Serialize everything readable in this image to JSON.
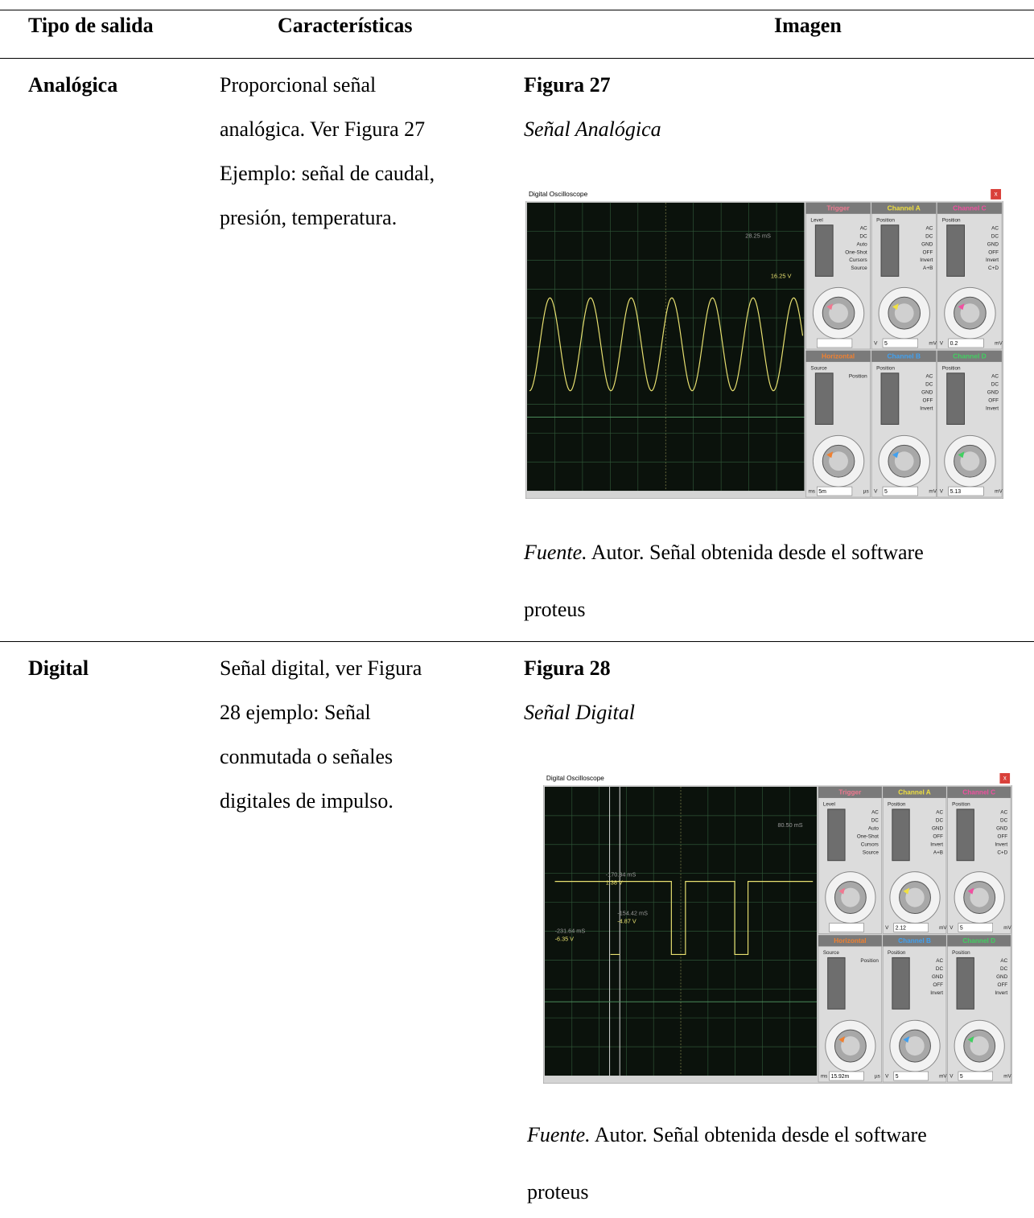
{
  "table": {
    "headers": [
      "Tipo de salida",
      "Características",
      "Imagen"
    ],
    "rows": [
      {
        "type": "Analógica",
        "features": [
          "Proporcional señal",
          "analógica. Ver Figura 27",
          "Ejemplo: señal de caudal,",
          "presión, temperatura."
        ],
        "figure": {
          "number": "Figura 27",
          "title": "Señal Analógica",
          "source_label": "Fuente.",
          "source_text": [
            "Autor. Señal obtenida desde el software",
            "proteus"
          ],
          "scope": {
            "window_title": "Digital Oscilloscope",
            "close": "x",
            "wave": "sine",
            "readouts": [
              {
                "text": "28.25 mS",
                "color": "#9a9a9a"
              },
              {
                "text": "16.25 V",
                "color": "#e8e070"
              }
            ],
            "panels": [
              {
                "name": "Trigger",
                "color": "#f07890",
                "labels": [
                  "Level",
                  "AC",
                  "DC",
                  "Auto",
                  "One-Shot",
                  "Cursors",
                  "Source"
                ],
                "field": "",
                "units": []
              },
              {
                "name": "Channel A",
                "color": "#f0e040",
                "labels": [
                  "Position",
                  "AC",
                  "DC",
                  "GND",
                  "OFF",
                  "Invert",
                  "A+B"
                ],
                "field": "5",
                "units": [
                  "V",
                  "mV"
                ]
              },
              {
                "name": "Channel C",
                "color": "#f050a0",
                "labels": [
                  "Position",
                  "AC",
                  "DC",
                  "GND",
                  "OFF",
                  "Invert",
                  "C+D"
                ],
                "field": "0.2",
                "units": [
                  "V",
                  "mV"
                ]
              },
              {
                "name": "Horizontal",
                "color": "#f08030",
                "labels": [
                  "Source",
                  "Position"
                ],
                "field": "5m",
                "units": [
                  "ms",
                  "µs"
                ]
              },
              {
                "name": "Channel B",
                "color": "#40a0f0",
                "labels": [
                  "Position",
                  "AC",
                  "DC",
                  "GND",
                  "OFF",
                  "Invert"
                ],
                "field": "5",
                "units": [
                  "V",
                  "mV"
                ]
              },
              {
                "name": "Channel D",
                "color": "#40d060",
                "labels": [
                  "Position",
                  "AC",
                  "DC",
                  "GND",
                  "OFF",
                  "Invert"
                ],
                "field": "5.13",
                "units": [
                  "V",
                  "mV"
                ]
              }
            ]
          }
        }
      },
      {
        "type": "Digital",
        "features": [
          "Señal digital, ver Figura",
          "28 ejemplo: Señal",
          "conmutada o señales",
          "digitales de impulso."
        ],
        "figure": {
          "number": "Figura 28",
          "title": "Señal Digital",
          "source_label": "Fuente.",
          "source_text": [
            "Autor. Señal obtenida desde el software",
            "proteus"
          ],
          "scope": {
            "window_title": "Digital Oscilloscope",
            "close": "x",
            "wave": "square",
            "readouts": [
              {
                "text": "80.50 mS",
                "color": "#9a9a9a"
              },
              {
                "text": "-170.34 mS",
                "color": "#9a9a9a"
              },
              {
                "text": "1.38 V",
                "color": "#e8e070"
              },
              {
                "text": "-154.42 mS",
                "color": "#9a9a9a"
              },
              {
                "text": "-4.87 V",
                "color": "#e8e070"
              },
              {
                "text": "-231.64 mS",
                "color": "#9a9a9a"
              },
              {
                "text": "-6.35 V",
                "color": "#e8e070"
              }
            ],
            "panels": [
              {
                "name": "Trigger",
                "color": "#f07890",
                "labels": [
                  "Level",
                  "AC",
                  "DC",
                  "Auto",
                  "One-Shot",
                  "Cursors",
                  "Source"
                ],
                "field": "",
                "units": []
              },
              {
                "name": "Channel A",
                "color": "#f0e040",
                "labels": [
                  "Position",
                  "AC",
                  "DC",
                  "GND",
                  "OFF",
                  "Invert",
                  "A+B"
                ],
                "field": "2.12",
                "units": [
                  "V",
                  "mV"
                ]
              },
              {
                "name": "Channel C",
                "color": "#f050a0",
                "labels": [
                  "Position",
                  "AC",
                  "DC",
                  "GND",
                  "OFF",
                  "Invert",
                  "C+D"
                ],
                "field": "5",
                "units": [
                  "V",
                  "mV"
                ]
              },
              {
                "name": "Horizontal",
                "color": "#f08030",
                "labels": [
                  "Source",
                  "Position"
                ],
                "field": "15.92m",
                "units": [
                  "ms",
                  "µs"
                ]
              },
              {
                "name": "Channel B",
                "color": "#40a0f0",
                "labels": [
                  "Position",
                  "AC",
                  "DC",
                  "GND",
                  "OFF",
                  "Invert"
                ],
                "field": "5",
                "units": [
                  "V",
                  "mV"
                ]
              },
              {
                "name": "Channel D",
                "color": "#40d060",
                "labels": [
                  "Position",
                  "AC",
                  "DC",
                  "GND",
                  "OFF",
                  "Invert"
                ],
                "field": "5",
                "units": [
                  "V",
                  "mV"
                ]
              }
            ]
          }
        }
      }
    ]
  }
}
